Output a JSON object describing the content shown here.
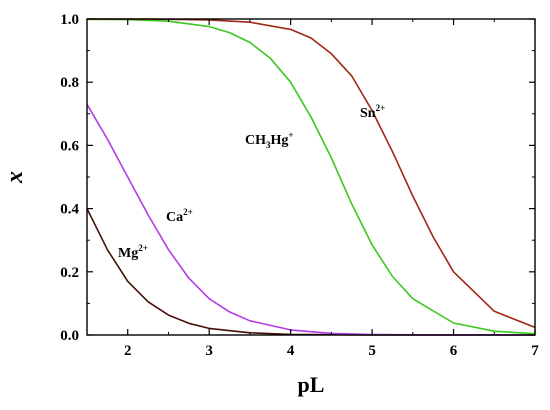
{
  "chart_data": {
    "type": "line",
    "xlabel": "pL",
    "ylabel": "x",
    "xlim": [
      1.5,
      7
    ],
    "ylim": [
      0,
      1.0
    ],
    "x_ticks": [
      2,
      3,
      4,
      5,
      6,
      7
    ],
    "x_tick_labels": [
      "2",
      "3",
      "4",
      "5",
      "6",
      "7"
    ],
    "y_ticks": [
      0.0,
      0.2,
      0.4,
      0.6,
      0.8,
      1.0
    ],
    "y_tick_labels": [
      "0.0",
      "0.2",
      "0.4",
      "0.6",
      "0.8",
      "1.0"
    ],
    "grid": false,
    "legend": "none",
    "series": [
      {
        "name": "Mg2+",
        "label": {
          "base": "Mg",
          "sup": "2+"
        },
        "color": "#4a0f0a",
        "x": [
          1.5,
          1.75,
          2.0,
          2.25,
          2.5,
          2.75,
          3.0,
          3.5,
          4.0,
          4.5,
          5.0,
          6.0,
          7.0
        ],
        "y": [
          0.4,
          0.27,
          0.17,
          0.105,
          0.063,
          0.037,
          0.021,
          0.007,
          0.002,
          0.001,
          0.0,
          0.0,
          0.0
        ]
      },
      {
        "name": "Ca2+",
        "label": {
          "base": "Ca",
          "sup": "2+"
        },
        "color": "#b43ce6",
        "x": [
          1.5,
          1.75,
          2.0,
          2.25,
          2.5,
          2.75,
          3.0,
          3.25,
          3.5,
          4.0,
          4.5,
          5.0,
          5.5,
          6.0,
          7.0
        ],
        "y": [
          0.73,
          0.62,
          0.5,
          0.38,
          0.27,
          0.18,
          0.115,
          0.073,
          0.045,
          0.016,
          0.005,
          0.0017,
          0.0005,
          0.0002,
          0.0
        ]
      },
      {
        "name": "CH3Hg+",
        "label": {
          "base": "CH",
          "sub": "3",
          "mid": "Hg",
          "sup": "+"
        },
        "color": "#3cc81e",
        "x": [
          1.5,
          2.0,
          2.5,
          3.0,
          3.25,
          3.5,
          3.75,
          4.0,
          4.25,
          4.5,
          4.75,
          5.0,
          5.25,
          5.5,
          6.0,
          6.5,
          7.0
        ],
        "y": [
          0.999,
          0.998,
          0.993,
          0.976,
          0.957,
          0.926,
          0.876,
          0.8,
          0.69,
          0.56,
          0.415,
          0.285,
          0.185,
          0.115,
          0.038,
          0.012,
          0.004
        ]
      },
      {
        "name": "Sn2+",
        "label": {
          "base": "Sn",
          "sup": "2+"
        },
        "color": "#a02814",
        "x": [
          1.5,
          2.0,
          2.5,
          3.0,
          3.5,
          4.0,
          4.25,
          4.5,
          4.75,
          5.0,
          5.25,
          5.5,
          5.75,
          6.0,
          6.5,
          7.0
        ],
        "y": [
          1.0,
          1.0,
          0.999,
          0.997,
          0.99,
          0.967,
          0.94,
          0.89,
          0.82,
          0.71,
          0.58,
          0.44,
          0.31,
          0.2,
          0.075,
          0.024
        ]
      }
    ]
  }
}
